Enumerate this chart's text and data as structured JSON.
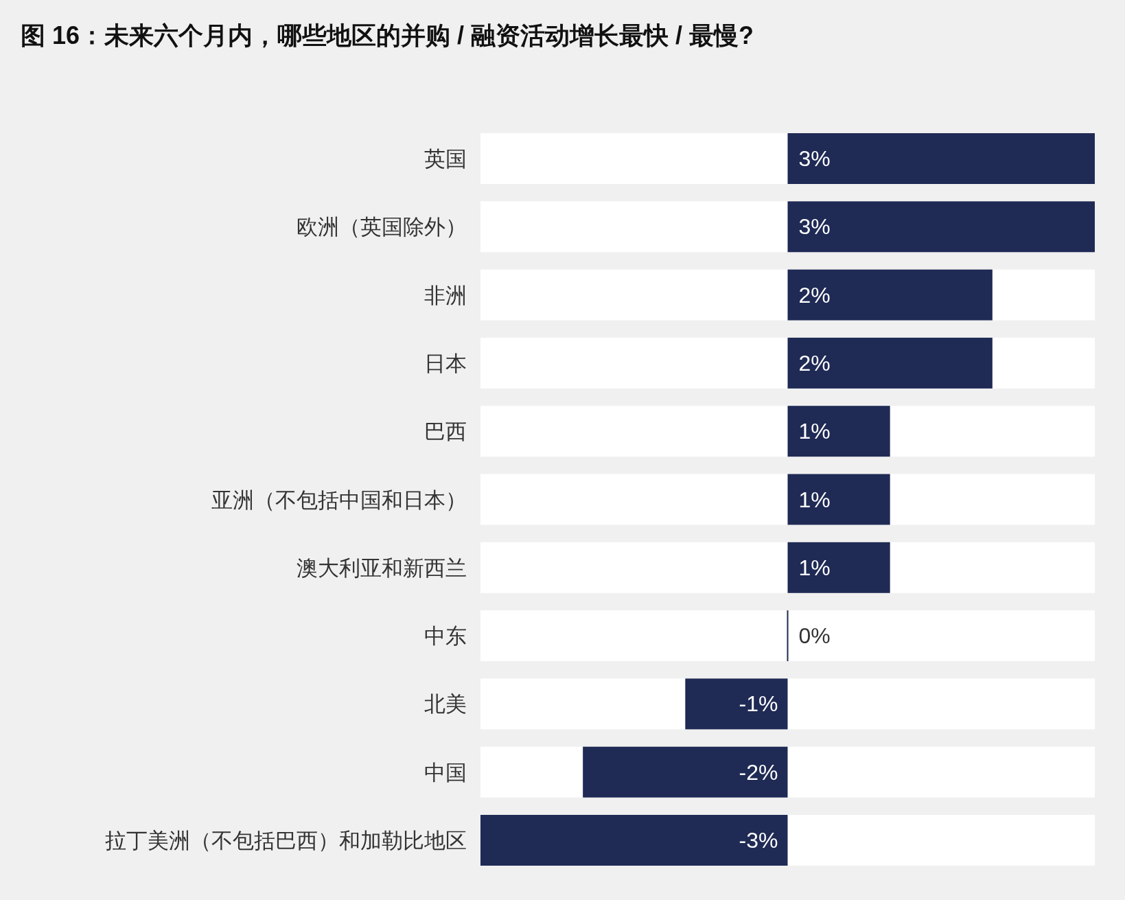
{
  "chart_data": {
    "type": "bar",
    "orientation": "horizontal",
    "title": "图 16：未来六个月内，哪些地区的并购 / 融资活动增长最快 / 最慢?",
    "categories": [
      "英国",
      "欧洲（英国除外）",
      "非洲",
      "日本",
      "巴西",
      "亚洲（不包括中国和日本）",
      "澳大利亚和新西兰",
      "中东",
      "北美",
      "中国",
      "拉丁美洲（不包括巴西）和加勒比地区"
    ],
    "values": [
      3,
      3,
      2,
      2,
      1,
      1,
      1,
      0,
      -1,
      -2,
      -3
    ],
    "value_labels": [
      "3%",
      "3%",
      "2%",
      "2%",
      "1%",
      "1%",
      "1%",
      "0%",
      "-1%",
      "-2%",
      "-3%"
    ],
    "color": "#1f2a55",
    "xlim": [
      -3,
      3
    ],
    "tick_labels": "y"
  }
}
